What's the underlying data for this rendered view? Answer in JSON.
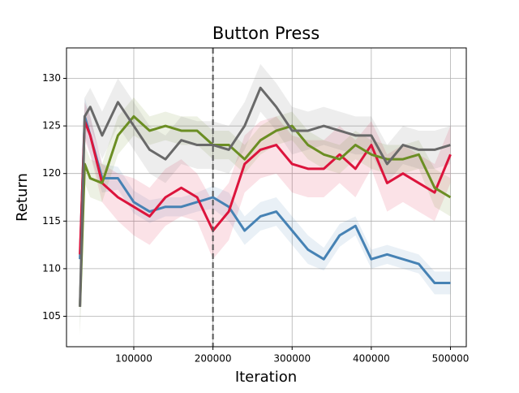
{
  "chart_data": {
    "type": "line",
    "title": "Button Press",
    "xlabel": "Iteration",
    "ylabel": "Return",
    "x": [
      32000,
      38000,
      45000,
      60000,
      80000,
      100000,
      120000,
      140000,
      160000,
      180000,
      200000,
      220000,
      240000,
      260000,
      280000,
      300000,
      320000,
      340000,
      360000,
      380000,
      400000,
      420000,
      440000,
      460000,
      480000,
      500000
    ],
    "series": [
      {
        "color": "#4682b4",
        "values": [
          111,
          126,
          124,
          119.5,
          119.5,
          117,
          116,
          116.5,
          116.5,
          117,
          117.5,
          116.5,
          114,
          115.5,
          116,
          114,
          112,
          111,
          113.5,
          114.5,
          111,
          111.5,
          111,
          110.5,
          108.5,
          108.5
        ],
        "errors": [
          4,
          2,
          2,
          1.5,
          1.2,
          1.2,
          1.2,
          1,
          1,
          1,
          1.2,
          1.5,
          1.5,
          1.5,
          1.5,
          1.5,
          1.5,
          1.2,
          1.2,
          1,
          1,
          1,
          1,
          1,
          1.2,
          1.2
        ]
      },
      {
        "color": "#dc143c",
        "values": [
          111.5,
          125.5,
          124,
          119,
          117.5,
          116.5,
          115.5,
          117.5,
          118.5,
          117.5,
          114,
          116,
          121,
          122.5,
          123,
          121,
          120.5,
          120.5,
          122,
          120.5,
          123,
          119,
          120,
          119,
          118,
          122
        ],
        "errors": [
          4,
          2,
          2,
          2,
          2.5,
          3,
          3,
          3,
          3,
          2.5,
          3,
          3,
          3,
          3,
          3,
          3,
          3,
          3,
          3,
          3,
          2.5,
          3,
          3,
          3,
          3,
          3
        ]
      },
      {
        "color": "#6b8e23",
        "values": [
          106,
          121,
          119.5,
          119,
          124,
          126,
          124.5,
          125,
          124.5,
          124.5,
          123,
          123,
          121.5,
          123.5,
          124.5,
          125,
          123,
          122,
          121.5,
          123,
          122,
          121.5,
          121.5,
          122,
          118.5,
          117.5
        ],
        "errors": [
          3,
          2,
          2,
          2,
          2,
          2,
          1.5,
          1.5,
          1.5,
          1.5,
          1.5,
          1.5,
          1.5,
          1.5,
          1.5,
          1.5,
          1.5,
          1.5,
          1.5,
          1.5,
          1.5,
          1.5,
          1.5,
          1.5,
          2,
          2
        ]
      },
      {
        "color": "#696969",
        "values": [
          106,
          126,
          127,
          124,
          127.5,
          125,
          122.5,
          121.5,
          123.5,
          123,
          123,
          122.5,
          125,
          129,
          127,
          124.5,
          124.5,
          125,
          124.5,
          124,
          124,
          121,
          123,
          122.5,
          122.5,
          123
        ],
        "errors": [
          3,
          2,
          2,
          2.5,
          2.5,
          2.5,
          2.5,
          2.5,
          2.5,
          2.5,
          2.5,
          2.5,
          2.5,
          2.5,
          2.5,
          2.5,
          2,
          2,
          2,
          2,
          2,
          2,
          2,
          2,
          2,
          2
        ]
      }
    ],
    "vline": 200000,
    "xlim": [
      15000,
      520000
    ],
    "xticks": [
      100000,
      200000,
      300000,
      400000,
      500000
    ],
    "ylim": [
      101.8,
      133.2
    ],
    "yticks": [
      105,
      110,
      115,
      120,
      125,
      130
    ],
    "grid": true
  }
}
